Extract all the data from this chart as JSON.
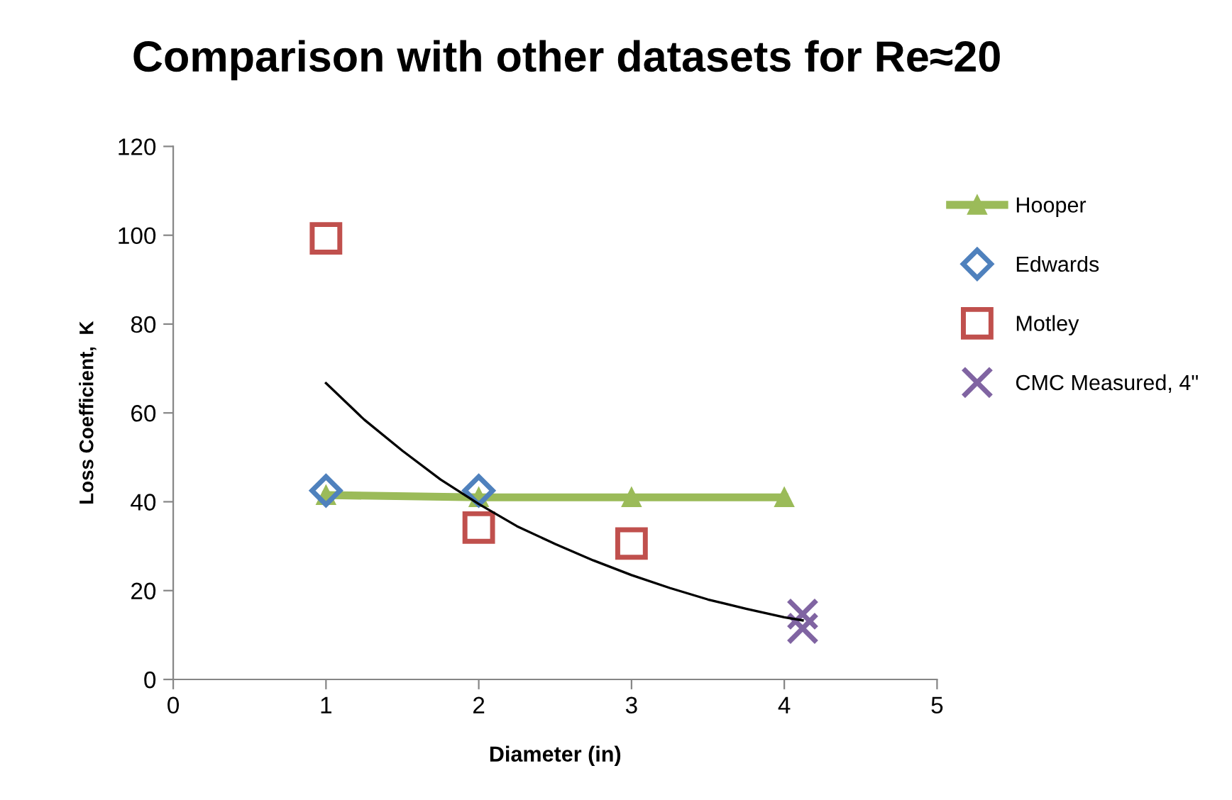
{
  "chart_data": {
    "type": "scatter",
    "title": "Comparison with other datasets for Re≈20",
    "xlabel": "Diameter (in)",
    "ylabel": "Loss Coefficient,  K",
    "xlim": [
      0,
      5
    ],
    "xticks": [
      0,
      1,
      2,
      3,
      4,
      5
    ],
    "ylim": [
      0,
      120
    ],
    "yticks": [
      0,
      20,
      40,
      60,
      80,
      100,
      120
    ],
    "grid": false,
    "legend": "right",
    "series": [
      {
        "name": "Hooper",
        "type": "line",
        "marker": "triangle",
        "color": "#9bbb59",
        "x": [
          1,
          2,
          3,
          4
        ],
        "values": [
          41.5,
          41,
          41,
          41
        ]
      },
      {
        "name": "Edwards",
        "marker": "diamond",
        "color": "#4f81bd",
        "x": [
          1,
          2
        ],
        "values": [
          42.5,
          42.5
        ]
      },
      {
        "name": "Motley",
        "marker": "square",
        "color": "#c0504d",
        "x": [
          1,
          2,
          3
        ],
        "values": [
          99.3,
          34.2,
          30.6
        ]
      },
      {
        "name": "CMC Measured, 4\"",
        "marker": "cross",
        "color": "#8064a2",
        "x": [
          4.12,
          4.12
        ],
        "values": [
          14.7,
          11.5
        ]
      },
      {
        "type": "line",
        "marker": "none",
        "color": "#000000",
        "x": [
          1,
          1.25,
          1.5,
          1.75,
          2,
          2.25,
          2.5,
          2.75,
          3,
          3.25,
          3.5,
          3.75,
          4,
          4.12
        ],
        "values": [
          66.7,
          58.5,
          51.5,
          45,
          39.5,
          34.5,
          30.5,
          26.8,
          23.5,
          20.6,
          18,
          15.9,
          14,
          13.3
        ]
      }
    ]
  }
}
